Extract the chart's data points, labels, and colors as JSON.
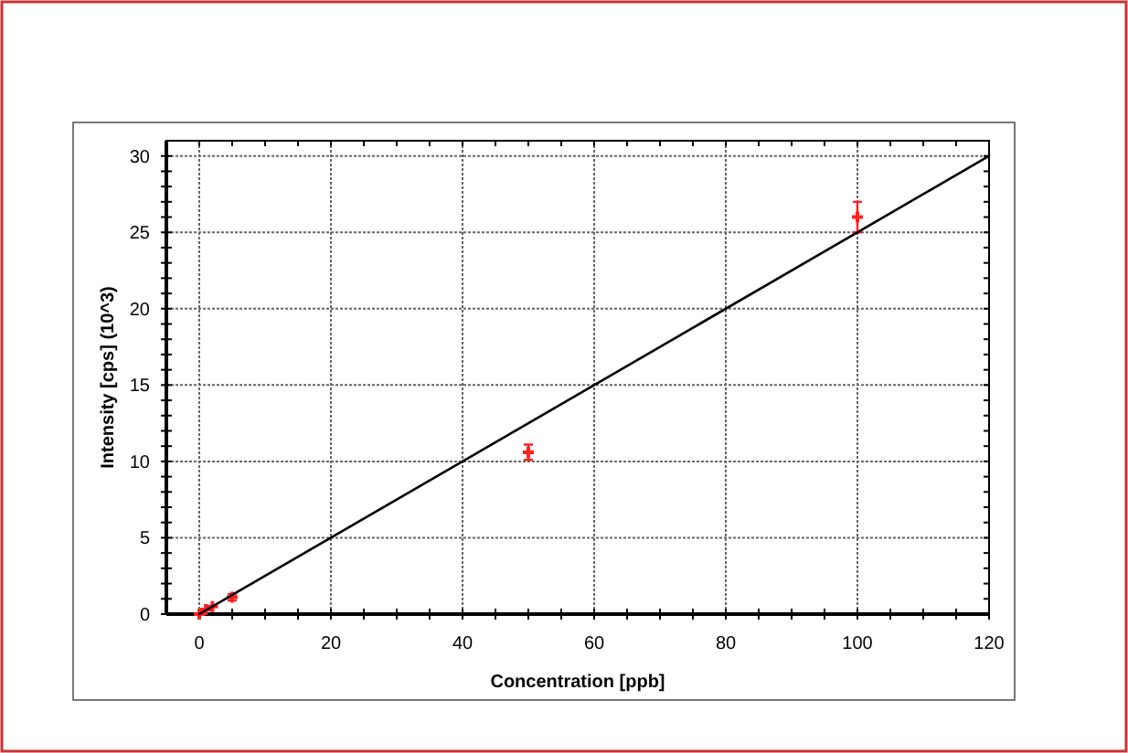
{
  "chart_data": {
    "type": "scatter",
    "xlabel": "Concentration [ppb]",
    "ylabel": "Intensity [cps] (10^3)",
    "xlim": [
      -5,
      120
    ],
    "ylim": [
      0,
      31
    ],
    "xticks": [
      0,
      20,
      40,
      60,
      80,
      100,
      120
    ],
    "yticks": [
      0,
      5,
      10,
      15,
      20,
      25,
      30
    ],
    "grid": true,
    "series": [
      {
        "color": "#ff2020",
        "marker": "cross",
        "x": [
          0,
          1,
          2,
          5,
          50,
          100
        ],
        "values": [
          0,
          0.3,
          0.5,
          1.1,
          10.6,
          26
        ],
        "errors": [
          null,
          null,
          null,
          0.2,
          0.5,
          1
        ]
      },
      {
        "type": "line",
        "color": "#000000",
        "x": [
          0,
          120
        ],
        "values": [
          0,
          30
        ]
      }
    ]
  }
}
